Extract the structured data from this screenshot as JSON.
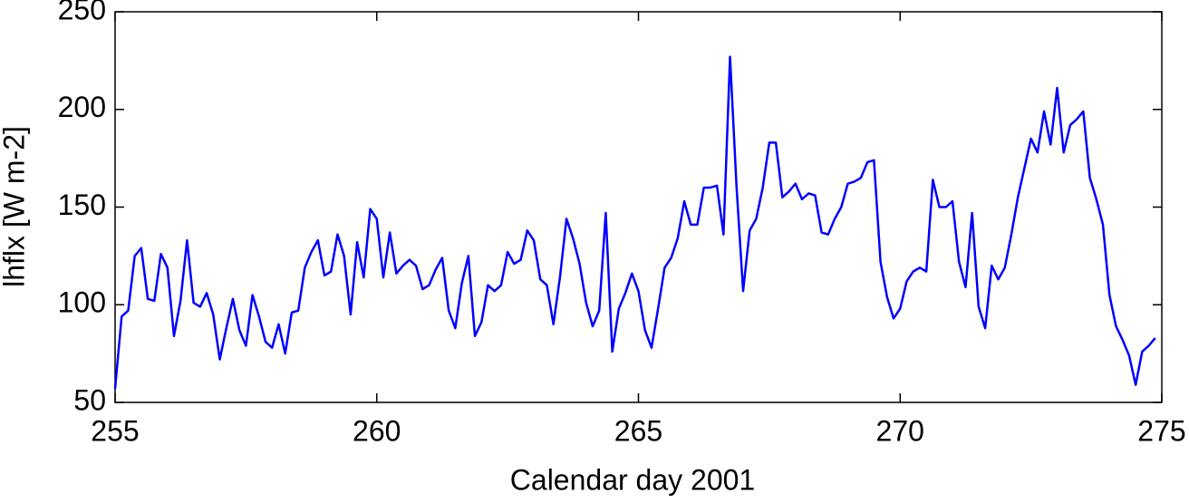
{
  "chart_data": {
    "type": "line",
    "xlabel": "Calendar day 2001",
    "ylabel": "lhflx [W m-2]",
    "xlim": [
      255,
      275
    ],
    "xticks": [
      255,
      260,
      265,
      270,
      275
    ],
    "ylim": [
      50,
      250
    ],
    "yticks": [
      50,
      100,
      150,
      200,
      250
    ],
    "x": [
      255,
      255.125,
      255.25,
      255.375,
      255.5,
      255.625,
      255.75,
      255.875,
      256,
      256.125,
      256.25,
      256.375,
      256.5,
      256.625,
      256.75,
      256.875,
      257,
      257.125,
      257.25,
      257.375,
      257.5,
      257.625,
      257.75,
      257.875,
      258,
      258.125,
      258.25,
      258.375,
      258.5,
      258.625,
      258.75,
      258.875,
      259,
      259.125,
      259.25,
      259.375,
      259.5,
      259.625,
      259.75,
      259.875,
      260,
      260.125,
      260.25,
      260.375,
      260.5,
      260.625,
      260.75,
      260.875,
      261,
      261.125,
      261.25,
      261.375,
      261.5,
      261.625,
      261.75,
      261.875,
      262,
      262.125,
      262.25,
      262.375,
      262.5,
      262.625,
      262.75,
      262.875,
      263,
      263.125,
      263.25,
      263.375,
      263.5,
      263.625,
      263.75,
      263.875,
      264,
      264.125,
      264.25,
      264.375,
      264.5,
      264.625,
      264.75,
      264.875,
      265,
      265.125,
      265.25,
      265.375,
      265.5,
      265.625,
      265.75,
      265.875,
      266,
      266.125,
      266.25,
      266.375,
      266.5,
      266.625,
      266.75,
      266.875,
      267,
      267.125,
      267.25,
      267.375,
      267.5,
      267.625,
      267.75,
      267.875,
      268,
      268.125,
      268.25,
      268.375,
      268.5,
      268.625,
      268.75,
      268.875,
      269,
      269.125,
      269.25,
      269.375,
      269.5,
      269.625,
      269.75,
      269.875,
      270,
      270.125,
      270.25,
      270.375,
      270.5,
      270.625,
      270.75,
      270.875,
      271,
      271.125,
      271.25,
      271.375,
      271.5,
      271.625,
      271.75,
      271.875,
      272,
      272.125,
      272.25,
      272.375,
      272.5,
      272.625,
      272.75,
      272.875,
      273,
      273.125,
      273.25,
      273.375,
      273.5,
      273.625,
      273.75,
      273.875,
      274,
      274.125,
      274.25,
      274.375,
      274.5,
      274.625,
      274.75,
      274.875
    ],
    "series": [
      {
        "color": "#0000ff",
        "values": [
          57,
          94,
          97,
          125,
          129,
          103,
          102,
          126,
          119,
          84,
          102,
          133,
          101,
          99,
          106,
          95,
          72,
          88,
          103,
          87,
          79,
          105,
          94,
          81,
          78,
          90,
          75,
          96,
          97,
          119,
          127,
          133,
          115,
          117,
          136,
          125,
          95,
          132,
          114,
          149,
          144,
          114,
          137,
          116,
          120,
          123,
          120,
          108,
          110,
          118,
          124,
          97,
          88,
          111,
          125,
          84,
          91,
          110,
          107,
          110,
          127,
          121,
          123,
          138,
          133,
          113,
          110,
          90,
          114,
          144,
          134,
          121,
          101,
          89,
          97,
          147,
          76,
          98,
          106,
          116,
          107,
          87,
          78,
          98,
          119,
          124,
          134,
          153,
          141,
          141,
          160,
          160,
          161,
          136,
          227,
          160,
          107,
          138,
          144,
          160,
          183,
          183,
          155,
          158,
          162,
          154,
          157,
          156,
          137,
          136,
          144,
          150,
          162,
          163,
          165,
          173,
          174,
          122,
          104,
          93,
          98,
          112,
          117,
          119,
          117,
          164,
          150,
          150,
          153,
          122,
          109,
          147,
          99,
          88,
          120,
          113,
          119,
          136,
          155,
          170,
          185,
          178,
          199,
          182,
          211,
          178,
          192,
          195,
          199,
          165,
          154,
          141,
          105,
          89,
          82,
          74,
          59,
          76,
          79,
          83
        ]
      }
    ]
  }
}
